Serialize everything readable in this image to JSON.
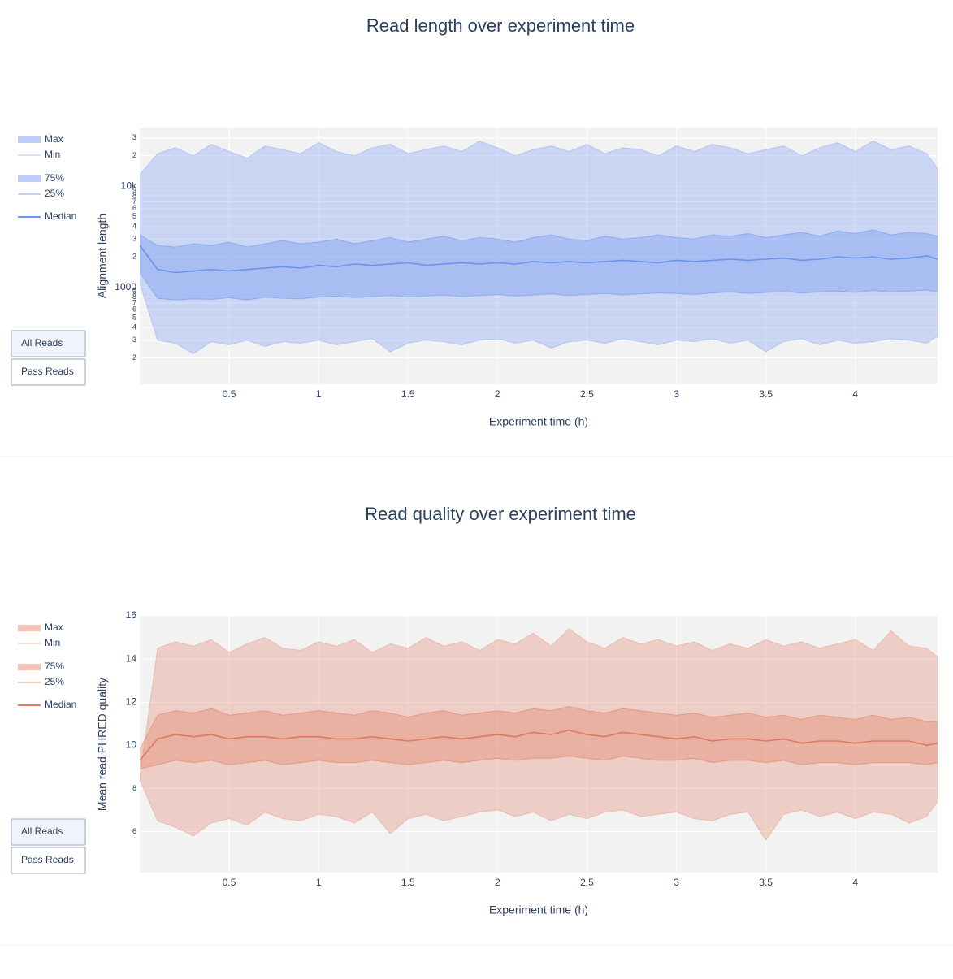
{
  "chart_data": [
    {
      "type": "area",
      "title": "Read length over experiment time",
      "xlabel": "Experiment time (h)",
      "ylabel": "Alignment length",
      "log_y": true,
      "grid": true,
      "x": [
        0,
        0.1,
        0.2,
        0.3,
        0.4,
        0.5,
        0.6,
        0.7,
        0.8,
        0.9,
        1,
        1.1,
        1.2,
        1.3,
        1.4,
        1.5,
        1.6,
        1.7,
        1.8,
        1.9,
        2,
        2.1,
        2.2,
        2.3,
        2.4,
        2.5,
        2.6,
        2.7,
        2.8,
        2.9,
        3,
        3.1,
        3.2,
        3.3,
        3.4,
        3.5,
        3.6,
        3.7,
        3.8,
        3.9,
        4,
        4.1,
        4.2,
        4.3,
        4.4,
        4.46
      ],
      "xlim": [
        0,
        4.46
      ],
      "xticks": [
        0.5,
        1,
        1.5,
        2,
        2.5,
        3,
        3.5,
        4
      ],
      "ylim": [
        110,
        38000
      ],
      "yticks": [
        {
          "value": 200,
          "label": "2"
        },
        {
          "value": 300,
          "label": "3"
        },
        {
          "value": 400,
          "label": "4"
        },
        {
          "value": 500,
          "label": "5"
        },
        {
          "value": 600,
          "label": "6"
        },
        {
          "value": 700,
          "label": "7"
        },
        {
          "value": 800,
          "label": "8"
        },
        {
          "value": 900,
          "label": "9"
        },
        1000,
        {
          "value": 2000,
          "label": "2"
        },
        {
          "value": 3000,
          "label": "3"
        },
        {
          "value": 4000,
          "label": "4"
        },
        {
          "value": 5000,
          "label": "5"
        },
        {
          "value": 6000,
          "label": "6"
        },
        {
          "value": 7000,
          "label": "7"
        },
        {
          "value": 8000,
          "label": "8"
        },
        {
          "value": 9000,
          "label": "9"
        },
        {
          "value": 10000,
          "label": "10k"
        },
        {
          "value": 20000,
          "label": "2"
        },
        {
          "value": 30000,
          "label": "3"
        }
      ],
      "buttons": [
        "All Reads",
        "Pass Reads"
      ],
      "series": [
        {
          "name": "Max",
          "color": "#6b93f2",
          "fill": true,
          "values": [
            13000,
            21000,
            24000,
            20000,
            26000,
            22000,
            19000,
            25000,
            23000,
            21000,
            27000,
            22000,
            20000,
            24000,
            26000,
            21000,
            23000,
            25000,
            22000,
            28000,
            24000,
            20000,
            23000,
            25000,
            22000,
            26000,
            21000,
            24000,
            23000,
            20000,
            25000,
            22000,
            26000,
            24000,
            21000,
            23000,
            25000,
            20000,
            24000,
            27000,
            22000,
            28000,
            23000,
            25000,
            21000,
            15000
          ]
        },
        {
          "name": "Min",
          "color": "#6b93f2",
          "values": [
            1100,
            300,
            280,
            220,
            290,
            270,
            300,
            260,
            290,
            280,
            300,
            270,
            290,
            310,
            230,
            280,
            300,
            290,
            270,
            300,
            310,
            280,
            300,
            250,
            290,
            300,
            280,
            310,
            290,
            270,
            300,
            290,
            310,
            280,
            300,
            230,
            290,
            310,
            270,
            300,
            280,
            290,
            310,
            300,
            280,
            330
          ]
        },
        {
          "name": "75%",
          "color": "#6b93f2",
          "fill": true,
          "values": [
            3300,
            2600,
            2500,
            2700,
            2600,
            2800,
            2500,
            2700,
            2900,
            2700,
            2800,
            3000,
            2700,
            2900,
            3100,
            2800,
            3000,
            3200,
            2900,
            3100,
            3000,
            2800,
            3100,
            3300,
            3000,
            2900,
            3200,
            3000,
            3100,
            3300,
            3100,
            3000,
            3300,
            3200,
            3400,
            3100,
            3300,
            3500,
            3200,
            3600,
            3400,
            3700,
            3300,
            3500,
            3400,
            3200
          ]
        },
        {
          "name": "25%",
          "color": "#6b93f2",
          "values": [
            1400,
            780,
            750,
            770,
            760,
            790,
            750,
            800,
            780,
            770,
            800,
            820,
            790,
            810,
            830,
            800,
            820,
            840,
            810,
            830,
            850,
            820,
            840,
            860,
            830,
            850,
            870,
            840,
            860,
            880,
            870,
            850,
            880,
            900,
            870,
            890,
            910,
            880,
            900,
            920,
            890,
            930,
            900,
            920,
            940,
            900
          ]
        },
        {
          "name": "Median",
          "color": "#6b93f2",
          "values": [
            2600,
            1500,
            1400,
            1450,
            1500,
            1450,
            1500,
            1550,
            1600,
            1550,
            1650,
            1600,
            1700,
            1650,
            1700,
            1750,
            1650,
            1700,
            1750,
            1700,
            1750,
            1700,
            1800,
            1750,
            1800,
            1750,
            1800,
            1850,
            1800,
            1750,
            1850,
            1800,
            1850,
            1900,
            1850,
            1900,
            1950,
            1850,
            1900,
            2000,
            1950,
            2000,
            1900,
            1950,
            2050,
            1900
          ]
        }
      ]
    },
    {
      "type": "area",
      "title": "Read quality over experiment time",
      "xlabel": "Experiment time (h)",
      "ylabel": "Mean read PHRED quality",
      "log_y": false,
      "grid": true,
      "x": [
        0,
        0.1,
        0.2,
        0.3,
        0.4,
        0.5,
        0.6,
        0.7,
        0.8,
        0.9,
        1,
        1.1,
        1.2,
        1.3,
        1.4,
        1.5,
        1.6,
        1.7,
        1.8,
        1.9,
        2,
        2.1,
        2.2,
        2.3,
        2.4,
        2.5,
        2.6,
        2.7,
        2.8,
        2.9,
        3,
        3.1,
        3.2,
        3.3,
        3.4,
        3.5,
        3.6,
        3.7,
        3.8,
        3.9,
        4,
        4.1,
        4.2,
        4.3,
        4.4,
        4.46
      ],
      "xlim": [
        0,
        4.46
      ],
      "xticks": [
        0.5,
        1,
        1.5,
        2,
        2.5,
        3,
        3.5,
        4
      ],
      "ylim": [
        4.1,
        16
      ],
      "yticks": [
        6,
        8,
        10,
        12,
        14,
        16
      ],
      "buttons": [
        "All Reads",
        "Pass Reads"
      ],
      "series": [
        {
          "name": "Max",
          "color": "#e07a5f",
          "fill": true,
          "values": [
            8.5,
            14.5,
            14.8,
            14.6,
            14.9,
            14.3,
            14.7,
            15.0,
            14.5,
            14.4,
            14.8,
            14.6,
            14.9,
            14.3,
            14.7,
            14.5,
            15.0,
            14.6,
            14.8,
            14.4,
            14.9,
            14.7,
            15.2,
            14.6,
            15.4,
            14.8,
            14.5,
            15.0,
            14.7,
            14.9,
            14.6,
            14.8,
            14.4,
            14.7,
            14.5,
            14.9,
            14.6,
            14.8,
            14.5,
            14.7,
            14.9,
            14.4,
            15.3,
            14.6,
            14.5,
            14.1
          ]
        },
        {
          "name": "Min",
          "color": "#e07a5f",
          "values": [
            8.4,
            6.5,
            6.2,
            5.8,
            6.4,
            6.6,
            6.3,
            6.9,
            6.6,
            6.5,
            6.8,
            6.7,
            6.4,
            6.9,
            5.9,
            6.6,
            6.8,
            6.5,
            6.7,
            6.9,
            7.0,
            6.7,
            6.9,
            6.5,
            6.8,
            6.6,
            6.9,
            7.0,
            6.7,
            6.8,
            6.9,
            6.6,
            6.5,
            6.8,
            6.9,
            5.6,
            6.8,
            7.0,
            6.7,
            6.9,
            6.6,
            6.9,
            6.8,
            6.4,
            6.7,
            7.4
          ]
        },
        {
          "name": "75%",
          "color": "#e07a5f",
          "fill": true,
          "values": [
            9.8,
            11.4,
            11.6,
            11.5,
            11.7,
            11.4,
            11.5,
            11.6,
            11.4,
            11.5,
            11.6,
            11.5,
            11.4,
            11.6,
            11.5,
            11.3,
            11.5,
            11.6,
            11.4,
            11.5,
            11.6,
            11.5,
            11.7,
            11.6,
            11.8,
            11.6,
            11.5,
            11.7,
            11.6,
            11.5,
            11.4,
            11.5,
            11.3,
            11.4,
            11.5,
            11.3,
            11.4,
            11.2,
            11.4,
            11.3,
            11.2,
            11.4,
            11.2,
            11.3,
            11.1,
            11.1
          ]
        },
        {
          "name": "25%",
          "color": "#e07a5f",
          "values": [
            8.9,
            9.1,
            9.3,
            9.2,
            9.3,
            9.1,
            9.2,
            9.3,
            9.1,
            9.2,
            9.3,
            9.2,
            9.2,
            9.3,
            9.2,
            9.1,
            9.2,
            9.3,
            9.2,
            9.3,
            9.4,
            9.3,
            9.4,
            9.4,
            9.5,
            9.4,
            9.3,
            9.5,
            9.4,
            9.3,
            9.3,
            9.4,
            9.2,
            9.3,
            9.3,
            9.2,
            9.3,
            9.1,
            9.2,
            9.2,
            9.1,
            9.2,
            9.2,
            9.2,
            9.1,
            9.2
          ]
        },
        {
          "name": "Median",
          "color": "#e07a5f",
          "values": [
            9.3,
            10.3,
            10.5,
            10.4,
            10.5,
            10.3,
            10.4,
            10.4,
            10.3,
            10.4,
            10.4,
            10.3,
            10.3,
            10.4,
            10.3,
            10.2,
            10.3,
            10.4,
            10.3,
            10.4,
            10.5,
            10.4,
            10.6,
            10.5,
            10.7,
            10.5,
            10.4,
            10.6,
            10.5,
            10.4,
            10.3,
            10.4,
            10.2,
            10.3,
            10.3,
            10.2,
            10.3,
            10.1,
            10.2,
            10.2,
            10.1,
            10.2,
            10.2,
            10.2,
            10.0,
            10.1
          ]
        }
      ]
    }
  ]
}
